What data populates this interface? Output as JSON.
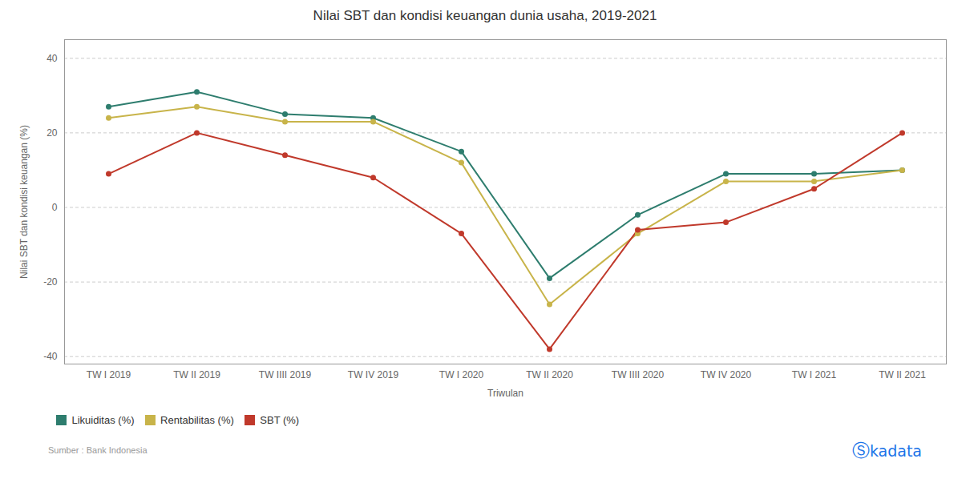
{
  "chart_data": {
    "type": "line",
    "title": "Nilai SBT dan kondisi keuangan dunia usaha, 2019-2021",
    "xlabel": "Triwulan",
    "ylabel": "Nilai SBT dan kondisi keuangan (%)",
    "categories": [
      "TW I 2019",
      "TW II 2019",
      "TW IIII 2019",
      "TW IV 2019",
      "TW I 2020",
      "TW II 2020",
      "TW IIII 2020",
      "TW IV 2020",
      "TW I 2021",
      "TW II 2021"
    ],
    "series": [
      {
        "name": "Likuiditas (%)",
        "color": "#2e7d6e",
        "values": [
          27,
          31,
          25,
          24,
          15,
          -19,
          -2,
          9,
          9,
          10
        ]
      },
      {
        "name": "Rentabilitas (%)",
        "color": "#c8b44a",
        "values": [
          24,
          27,
          23,
          23,
          12,
          -26,
          -7,
          7,
          7,
          10
        ]
      },
      {
        "name": "SBT (%)",
        "color": "#c0392b",
        "values": [
          9,
          20,
          14,
          8,
          -7,
          -38,
          -6,
          -4,
          5,
          20
        ]
      }
    ],
    "ylim": [
      -42,
      45
    ],
    "yticks": [
      -40,
      -20,
      0,
      20,
      40
    ],
    "grid": true,
    "marker": "circle",
    "legend": "bottom",
    "annotations": [
      "Sumber : Bank Indonesia",
      "Ⓢ",
      "kadata"
    ]
  }
}
